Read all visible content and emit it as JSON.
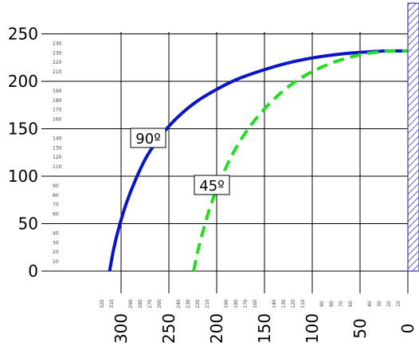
{
  "chart_data": {
    "type": "line",
    "title": "",
    "xlabel": "",
    "ylabel": "",
    "xlim": [
      0,
      330
    ],
    "ylim": [
      0,
      250
    ],
    "x_reversed": true,
    "grid": true,
    "x_ticks": [
      "300",
      "250",
      "200",
      "150",
      "100",
      "50",
      "0"
    ],
    "y_ticks": [
      "250",
      "200",
      "150",
      "100",
      "50",
      "0"
    ],
    "x_minor_ticks": [
      "320",
      "310",
      "290",
      "280",
      "270",
      "260",
      "240",
      "230",
      "220",
      "210",
      "190",
      "180",
      "170",
      "160",
      "140",
      "130",
      "120",
      "110",
      "90",
      "80",
      "70",
      "60",
      "40",
      "30",
      "20",
      "10"
    ],
    "y_minor_ticks": [
      "240",
      "230",
      "220",
      "210",
      "190",
      "180",
      "170",
      "160",
      "140",
      "130",
      "120",
      "110",
      "90",
      "80",
      "70",
      "60",
      "40",
      "30",
      "20",
      "10"
    ],
    "series": [
      {
        "name": "90º",
        "color": "#0a14c8",
        "style": "solid",
        "points": [
          [
            312,
            0
          ],
          [
            308,
            22
          ],
          [
            303,
            43
          ],
          [
            295,
            70
          ],
          [
            285,
            96
          ],
          [
            273,
            121
          ],
          [
            258,
            143
          ],
          [
            241,
            162
          ],
          [
            222,
            178
          ],
          [
            201,
            191
          ],
          [
            179,
            202
          ],
          [
            154,
            211
          ],
          [
            127,
            219
          ],
          [
            98,
            225
          ],
          [
            68,
            229
          ],
          [
            42,
            231
          ],
          [
            20,
            232
          ],
          [
            0,
            232
          ]
        ]
      },
      {
        "name": "45º",
        "color": "#22dd22",
        "style": "dashed",
        "points": [
          [
            224,
            0
          ],
          [
            220,
            20
          ],
          [
            214,
            43
          ],
          [
            206,
            70
          ],
          [
            196,
            96
          ],
          [
            183,
            124
          ],
          [
            167,
            150
          ],
          [
            149,
            172
          ],
          [
            128,
            192
          ],
          [
            106,
            207
          ],
          [
            83,
            218
          ],
          [
            62,
            225
          ],
          [
            45,
            229
          ],
          [
            30,
            231
          ],
          [
            15,
            232
          ],
          [
            0,
            232
          ]
        ]
      }
    ],
    "wall_color": "#3a3ab0"
  }
}
